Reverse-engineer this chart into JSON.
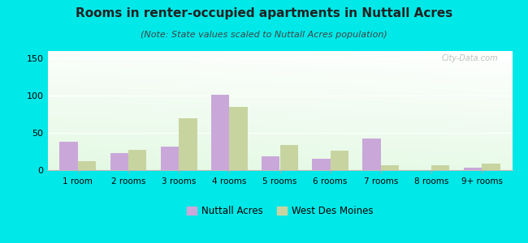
{
  "title": "Rooms in renter-occupied apartments in Nuttall Acres",
  "subtitle": "(Note: State values scaled to Nuttall Acres population)",
  "categories": [
    "1 room",
    "2 rooms",
    "3 rooms",
    "4 rooms",
    "5 rooms",
    "6 rooms",
    "7 rooms",
    "8 rooms",
    "9+ rooms"
  ],
  "nuttall_values": [
    38,
    23,
    32,
    101,
    19,
    15,
    42,
    0,
    3
  ],
  "wdm_values": [
    12,
    27,
    70,
    85,
    34,
    26,
    6,
    6,
    9
  ],
  "nuttall_color": "#c9a8d9",
  "wdm_color": "#c8d4a0",
  "background_color": "#00e8e8",
  "ylim": [
    0,
    160
  ],
  "yticks": [
    0,
    50,
    100,
    150
  ],
  "legend_nuttall": "Nuttall Acres",
  "legend_wdm": "West Des Moines",
  "title_fontsize": 11,
  "subtitle_fontsize": 8,
  "bar_width": 0.36
}
